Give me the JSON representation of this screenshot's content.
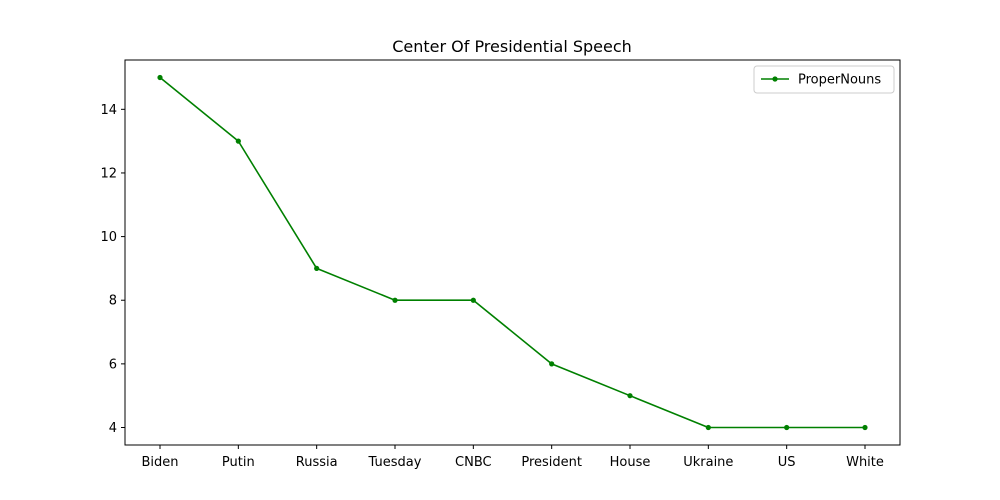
{
  "chart_data": {
    "type": "line",
    "title": "Center Of Presidential Speech",
    "xlabel": "",
    "ylabel": "",
    "categories": [
      "Biden",
      "Putin",
      "Russia",
      "Tuesday",
      "CNBC",
      "President",
      "House",
      "Ukraine",
      "US",
      "White"
    ],
    "series": [
      {
        "name": "ProperNouns",
        "values": [
          15,
          13,
          9,
          8,
          8,
          6,
          5,
          4,
          4,
          4
        ],
        "color": "#008000"
      }
    ],
    "ylim": [
      3.45,
      15.55
    ],
    "yticks": [
      4,
      6,
      8,
      10,
      12,
      14
    ],
    "grid": false,
    "legend_position": "top-right"
  }
}
